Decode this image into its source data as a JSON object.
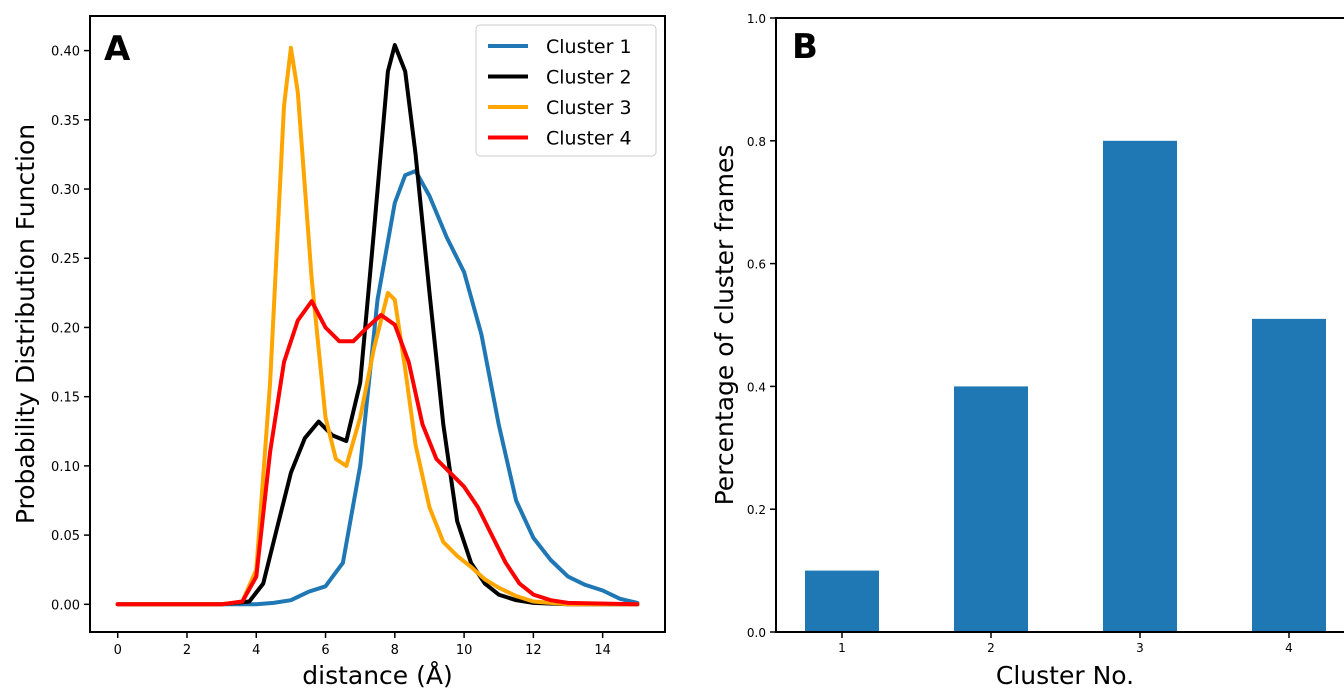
{
  "chart_data": [
    {
      "type": "line",
      "panel_label": "A",
      "xlabel": "distance (Å)",
      "ylabel": "Probability Distribution Function",
      "xlim": [
        -0.8,
        15.8
      ],
      "ylim": [
        -0.02,
        0.425
      ],
      "xticks": [
        0,
        2,
        4,
        6,
        8,
        10,
        12,
        14
      ],
      "yticks": [
        0.0,
        0.05,
        0.1,
        0.15,
        0.2,
        0.25,
        0.3,
        0.35,
        0.4
      ],
      "ytick_labels": [
        "0.00",
        "0.05",
        "0.10",
        "0.15",
        "0.20",
        "0.25",
        "0.30",
        "0.35",
        "0.40"
      ],
      "legend_position": "top-right",
      "series": [
        {
          "name": "Cluster 1",
          "color": "#1f77b4",
          "x": [
            0,
            3,
            4,
            4.5,
            5,
            5.5,
            6,
            6.5,
            7,
            7.5,
            8,
            8.3,
            8.6,
            9,
            9.5,
            10,
            10.5,
            11,
            11.5,
            12,
            12.5,
            13,
            13.5,
            14,
            14.5,
            15
          ],
          "y": [
            0,
            0,
            0,
            0.001,
            0.003,
            0.009,
            0.013,
            0.03,
            0.1,
            0.22,
            0.29,
            0.31,
            0.313,
            0.295,
            0.265,
            0.24,
            0.195,
            0.13,
            0.075,
            0.048,
            0.032,
            0.02,
            0.014,
            0.01,
            0.004,
            0.001
          ]
        },
        {
          "name": "Cluster 2",
          "color": "#000000",
          "x": [
            0,
            3,
            3.8,
            4.2,
            4.6,
            5,
            5.4,
            5.8,
            6.2,
            6.6,
            7,
            7.4,
            7.8,
            8,
            8.3,
            8.6,
            9,
            9.4,
            9.8,
            10.2,
            10.6,
            11,
            11.5,
            12,
            13,
            15
          ],
          "y": [
            0,
            0,
            0.002,
            0.015,
            0.055,
            0.095,
            0.12,
            0.132,
            0.122,
            0.118,
            0.16,
            0.27,
            0.385,
            0.404,
            0.385,
            0.325,
            0.225,
            0.13,
            0.06,
            0.03,
            0.015,
            0.007,
            0.003,
            0.001,
            0,
            0
          ]
        },
        {
          "name": "Cluster 3",
          "color": "#ffa500",
          "x": [
            0,
            3,
            3.6,
            4,
            4.4,
            4.8,
            5,
            5.2,
            5.6,
            6,
            6.3,
            6.6,
            7,
            7.4,
            7.8,
            8,
            8.3,
            8.6,
            9,
            9.4,
            9.8,
            10.2,
            10.6,
            11,
            11.5,
            12,
            13,
            15
          ],
          "y": [
            0,
            0,
            0.002,
            0.025,
            0.16,
            0.36,
            0.402,
            0.37,
            0.235,
            0.135,
            0.105,
            0.1,
            0.135,
            0.185,
            0.225,
            0.22,
            0.17,
            0.115,
            0.07,
            0.045,
            0.035,
            0.027,
            0.018,
            0.012,
            0.006,
            0.002,
            0,
            0
          ]
        },
        {
          "name": "Cluster 4",
          "color": "#ff0000",
          "x": [
            0,
            3,
            3.6,
            4,
            4.4,
            4.8,
            5.2,
            5.6,
            6,
            6.4,
            6.8,
            7.2,
            7.6,
            8,
            8.4,
            8.8,
            9.2,
            9.6,
            10,
            10.4,
            10.8,
            11.2,
            11.6,
            12,
            12.5,
            13,
            15
          ],
          "y": [
            0,
            0,
            0.002,
            0.02,
            0.11,
            0.175,
            0.205,
            0.219,
            0.2,
            0.19,
            0.19,
            0.2,
            0.209,
            0.202,
            0.175,
            0.13,
            0.105,
            0.095,
            0.085,
            0.07,
            0.05,
            0.03,
            0.015,
            0.007,
            0.003,
            0.001,
            0
          ]
        }
      ]
    },
    {
      "type": "bar",
      "panel_label": "B",
      "xlabel": "Cluster No.",
      "ylabel": "Percentage of cluster frames",
      "categories": [
        "1",
        "2",
        "3",
        "4"
      ],
      "values": [
        0.1,
        0.4,
        0.8,
        0.51
      ],
      "color": "#1f77b4",
      "ylim": [
        0.0,
        1.0
      ],
      "yticks": [
        0.0,
        0.2,
        0.4,
        0.6,
        0.8,
        1.0
      ],
      "ytick_labels": [
        "0.0",
        "0.2",
        "0.4",
        "0.6",
        "0.8",
        "1.0"
      ]
    }
  ]
}
